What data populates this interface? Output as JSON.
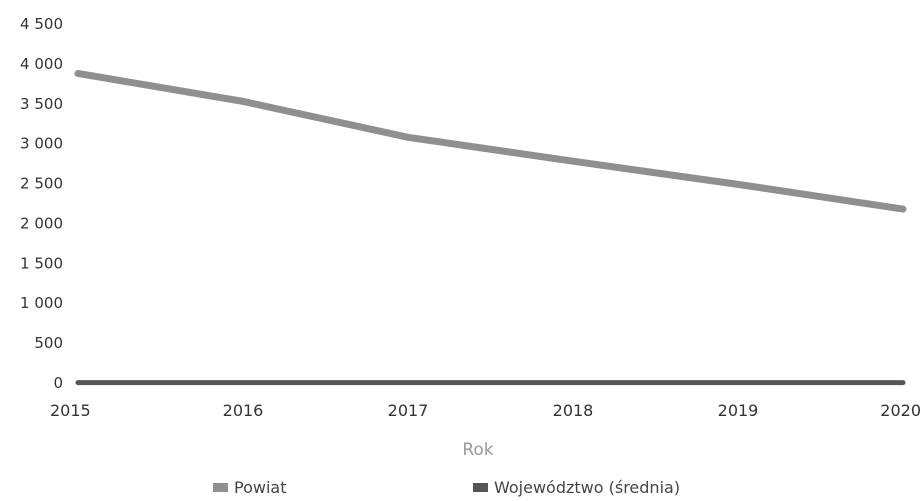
{
  "chart_data": {
    "type": "line",
    "title": "",
    "xlabel": "Rok",
    "ylabel": "",
    "x": [
      "2015",
      "2016",
      "2017",
      "2018",
      "2019",
      "2020"
    ],
    "ylim": [
      0,
      4500
    ],
    "y_ticks": [
      "0",
      "500",
      "1 000",
      "1 500",
      "2 000",
      "2 500",
      "3 000",
      "3 500",
      "4 000",
      "4 500"
    ],
    "grid": false,
    "legend_position": "bottom",
    "series": [
      {
        "name": "Powiat",
        "values": [
          3880,
          3530,
          3080,
          2780,
          2490,
          2180
        ],
        "color": "#8f8f8f"
      },
      {
        "name": "Województwo (średnia)",
        "values": [
          5,
          5,
          5,
          5,
          5,
          5
        ],
        "color": "#555555"
      }
    ]
  }
}
